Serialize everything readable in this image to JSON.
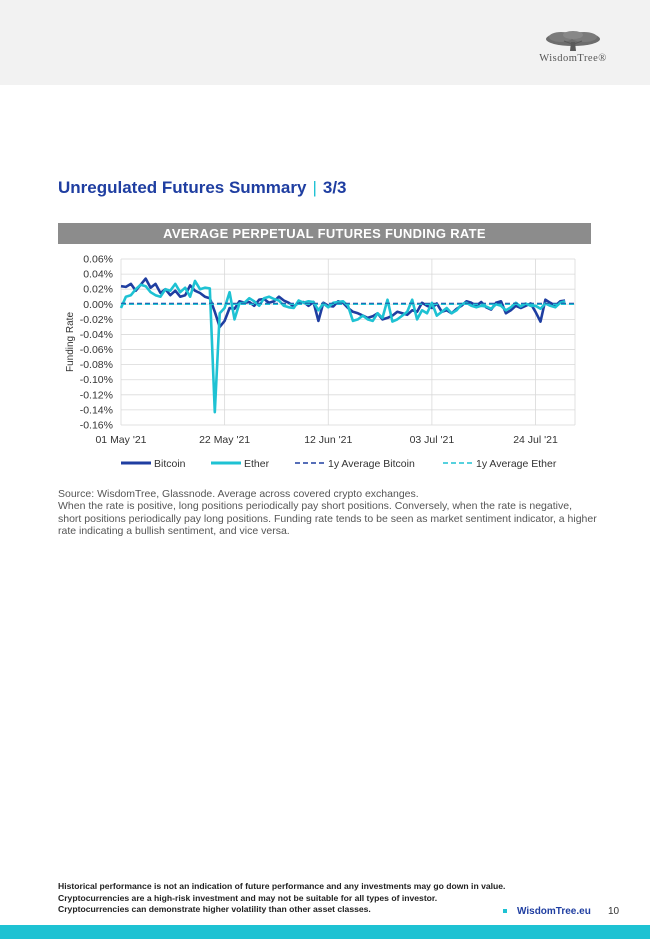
{
  "header": {
    "logo_text": "WisdomTree®",
    "logo_icon": "tree-icon"
  },
  "page_title": {
    "main": "Unregulated Futures Summary",
    "separator": "|",
    "page": "3/3"
  },
  "chart_data": {
    "type": "line",
    "title": "AVERAGE PERPETUAL FUTURES FUNDING RATE",
    "ylabel": "Funding Rate",
    "xlabel": "",
    "ylim": [
      -0.16,
      0.06
    ],
    "yticks": [
      0.06,
      0.04,
      0.02,
      0.0,
      -0.02,
      -0.04,
      -0.06,
      -0.08,
      -0.1,
      -0.12,
      -0.14,
      -0.16
    ],
    "ytick_labels": [
      "0.06%",
      "0.04%",
      "0.02%",
      "0.00%",
      "-0.02%",
      "-0.04%",
      "-0.06%",
      "-0.08%",
      "-0.10%",
      "-0.12%",
      "-0.14%",
      "-0.16%"
    ],
    "xlim": [
      0,
      92
    ],
    "xticks": [
      0,
      21,
      42,
      63,
      84
    ],
    "xtick_labels": [
      "01 May '21",
      "22 May '21",
      "12 Jun '21",
      "03 Jul '21",
      "24 Jul '21"
    ],
    "grid": true,
    "legend_position": "bottom",
    "series": [
      {
        "name": "Bitcoin",
        "color": "#1f3ea1",
        "dash": "solid",
        "values": [
          0.024,
          0.023,
          0.027,
          0.018,
          0.026,
          0.034,
          0.022,
          0.027,
          0.015,
          0.02,
          0.012,
          0.018,
          0.01,
          0.012,
          0.025,
          0.018,
          0.015,
          0.01,
          0.008,
          -0.01,
          -0.03,
          -0.022,
          -0.005,
          -0.006,
          0.004,
          0.002,
          0.003,
          -0.002,
          0.006,
          0.007,
          0.002,
          0.004,
          0.01,
          0.005,
          0.002,
          -0.003,
          0.002,
          0.003,
          -0.002,
          0.003,
          -0.022,
          0.002,
          -0.002,
          -0.003,
          0.004,
          0.002,
          -0.005,
          -0.01,
          -0.012,
          -0.015,
          -0.018,
          -0.016,
          -0.012,
          -0.02,
          -0.018,
          -0.015,
          -0.01,
          -0.012,
          -0.014,
          -0.008,
          -0.01,
          0.002,
          -0.002,
          -0.005,
          0.001,
          -0.01,
          -0.008,
          -0.012,
          -0.006,
          -0.002,
          0.004,
          0.002,
          -0.002,
          0.003,
          -0.004,
          -0.007,
          0.002,
          0.004,
          -0.012,
          -0.008,
          -0.002,
          -0.005,
          -0.002,
          0.001,
          -0.01,
          -0.023,
          0.006,
          0.002,
          -0.002,
          0.004,
          0.005
        ]
      },
      {
        "name": "Ether",
        "color": "#1ec2d3",
        "dash": "solid",
        "values": [
          -0.005,
          0.01,
          0.012,
          0.02,
          0.026,
          0.024,
          0.016,
          0.012,
          0.01,
          0.02,
          0.018,
          0.027,
          0.016,
          0.022,
          0.01,
          0.031,
          0.02,
          0.022,
          0.021,
          -0.143,
          -0.012,
          -0.005,
          0.016,
          -0.02,
          0.001,
          0.002,
          0.008,
          0.004,
          -0.002,
          0.008,
          0.01,
          0.007,
          0.005,
          -0.002,
          -0.004,
          -0.005,
          0.005,
          0.002,
          0.004,
          0.003,
          -0.008,
          0.001,
          -0.004,
          0.002,
          0.003,
          0.004,
          -0.002,
          -0.022,
          -0.02,
          -0.015,
          -0.02,
          -0.022,
          -0.012,
          -0.018,
          0.006,
          -0.023,
          -0.02,
          -0.015,
          -0.01,
          0.006,
          -0.02,
          -0.008,
          -0.012,
          0.002,
          -0.015,
          -0.01,
          -0.005,
          -0.012,
          -0.008,
          0.0,
          0.002,
          -0.002,
          -0.004,
          -0.002,
          -0.003,
          -0.006,
          0.0,
          -0.002,
          -0.008,
          -0.004,
          0.002,
          -0.003,
          0.001,
          -0.002,
          -0.002,
          -0.006,
          0.001,
          -0.002,
          -0.004,
          0.002,
          0.004
        ]
      },
      {
        "name": "1y Average Bitcoin",
        "color": "#1f3ea1",
        "dash": "dashed",
        "constant": 0.001
      },
      {
        "name": "1y Average Ether",
        "color": "#1ec2d3",
        "dash": "dashed",
        "constant": 0.0
      }
    ]
  },
  "notes": {
    "source": "Source: WisdomTree, Glassnode. Average across covered crypto exchanges.",
    "body": "When the rate is positive, long positions periodically pay short positions. Conversely, when the rate is negative, short positions periodically pay long positions. Funding rate tends to be seen as market sentiment indicator, a higher rate indicating a bullish sentiment, and vice versa."
  },
  "footer": {
    "disclaimer_1": "Historical performance is not an indication of future performance and any investments may go down in value.",
    "disclaimer_2": "Cryptocurrencies are a high-risk investment and may not be suitable for all types of investor.",
    "disclaimer_3": "Cryptocurrencies can demonstrate higher volatility than other asset classes.",
    "link": "WisdomTree.eu",
    "page_number": "10"
  }
}
